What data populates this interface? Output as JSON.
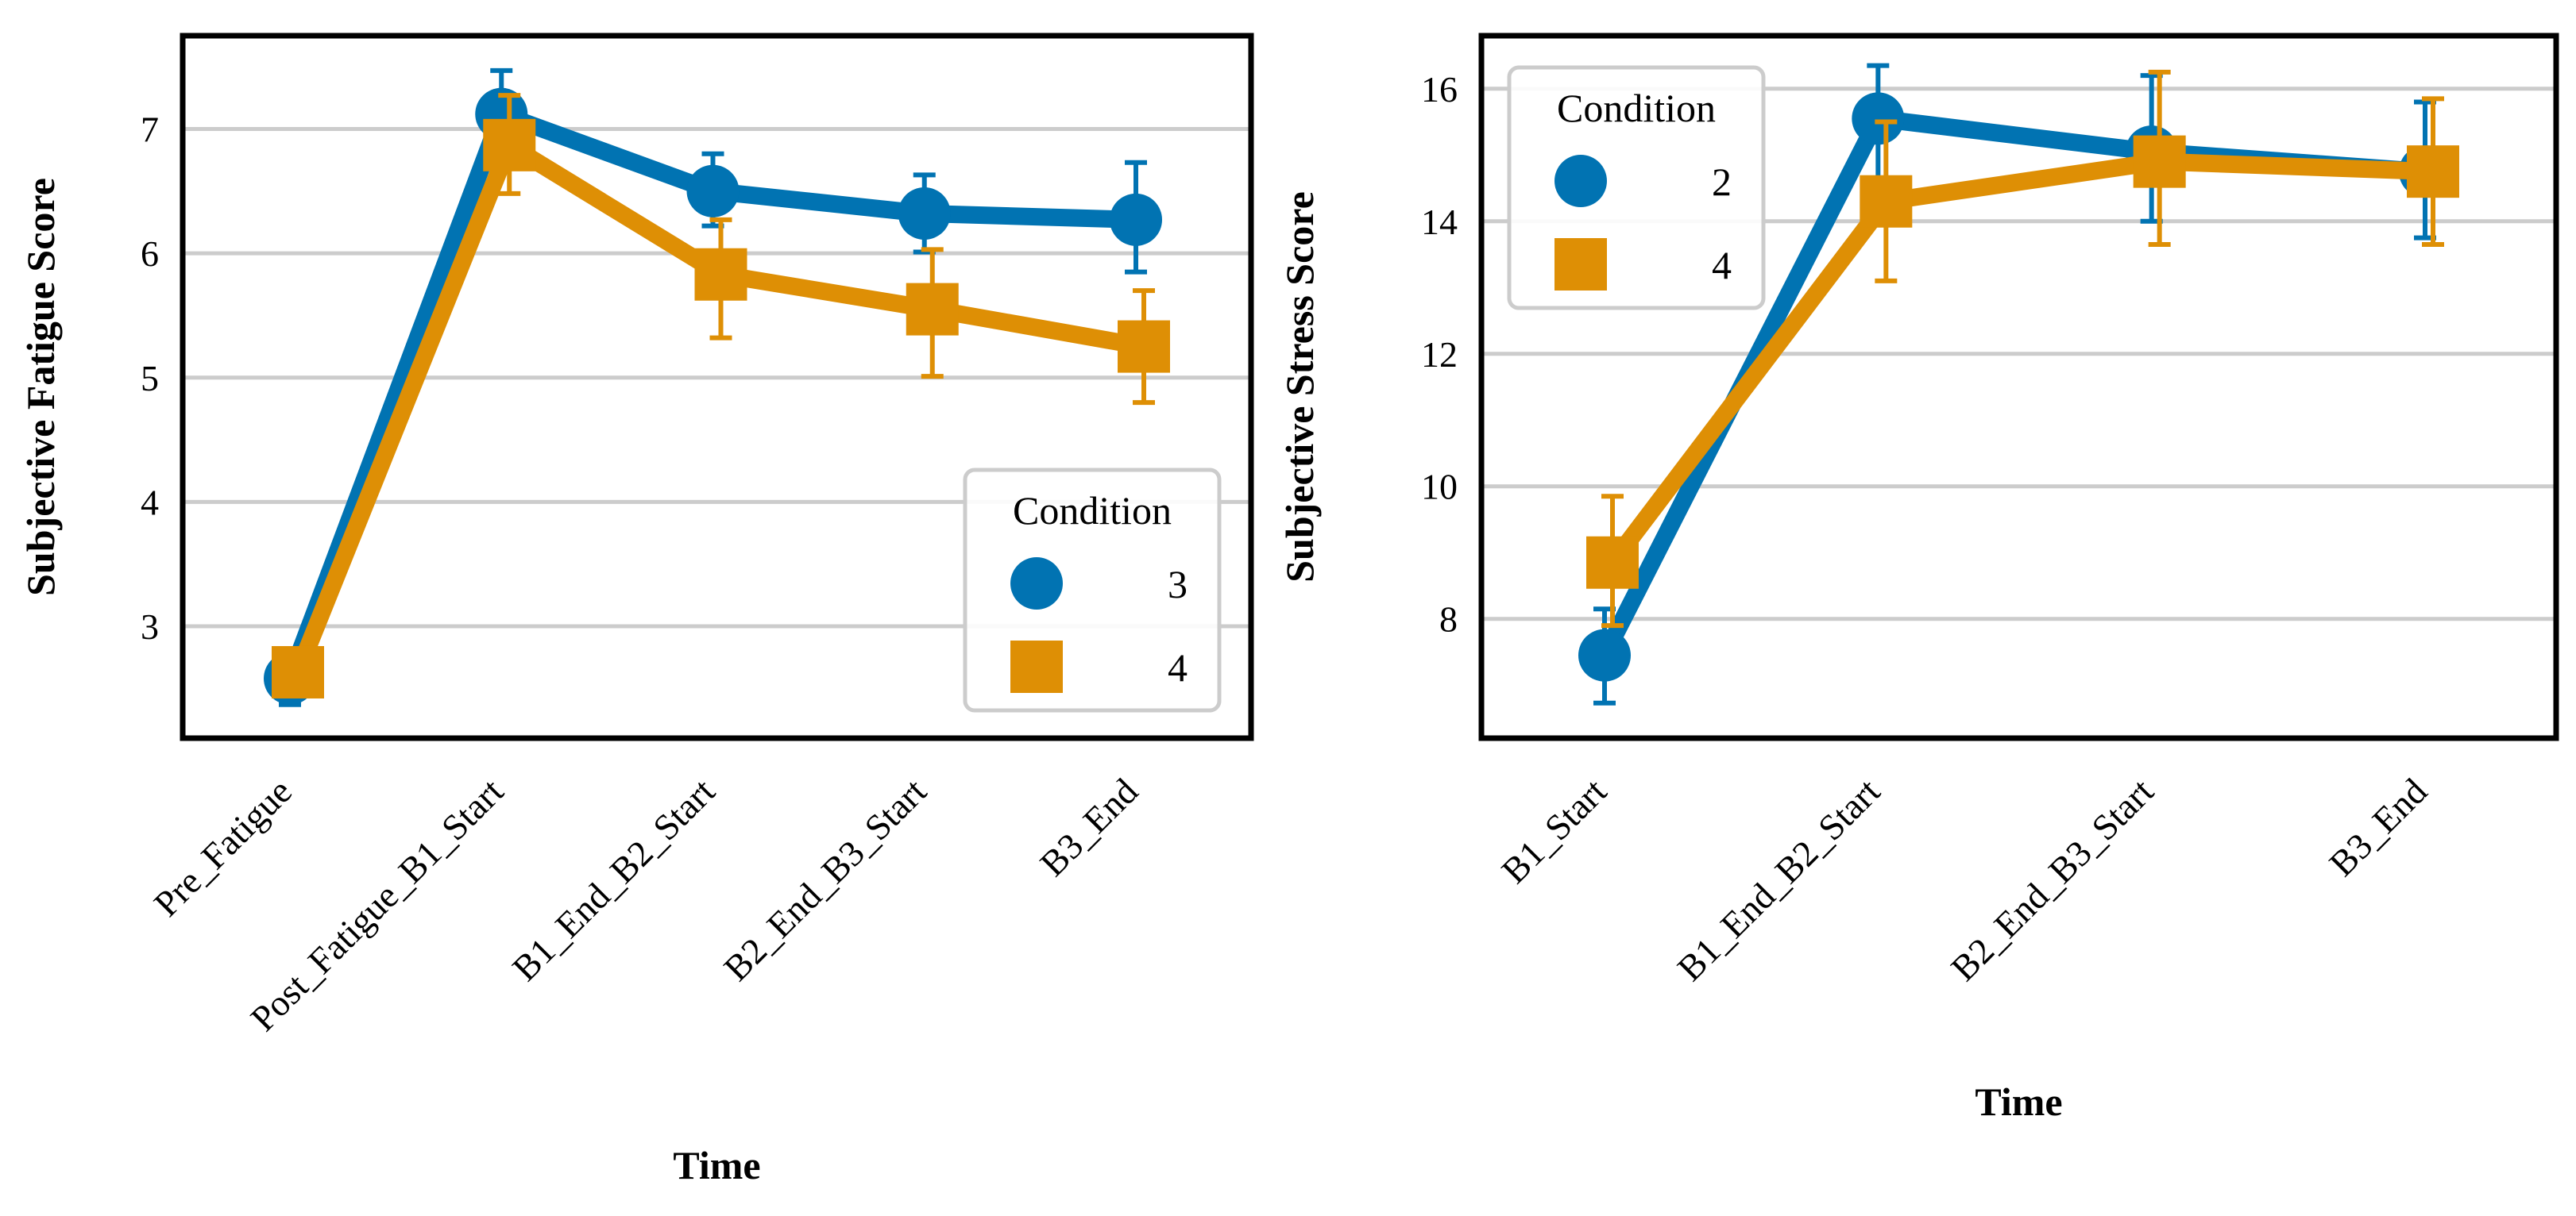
{
  "colors": {
    "series_a": "#0173b2",
    "series_b": "#de8f05",
    "grid": "#cccccc",
    "frame": "#000000"
  },
  "chart_data": [
    {
      "type": "line",
      "xlabel": "Time",
      "ylabel": "Subjective Fatigue Score",
      "categories": [
        "Pre_Fatigue",
        "Post_Fatigue_B1_Start",
        "B1_End_B2_Start",
        "B2_End_B3_Start",
        "B3_End"
      ],
      "ylim": [
        2.1,
        7.75
      ],
      "yticks": [
        3,
        4,
        5,
        6,
        7
      ],
      "grid": true,
      "legend": {
        "title": "Condition",
        "placement": "lower-right"
      },
      "series": [
        {
          "name": "3",
          "marker": "circle",
          "color": "#0173b2",
          "values": [
            2.58,
            7.12,
            6.5,
            6.32,
            6.27
          ],
          "error_low": [
            2.37,
            6.78,
            6.22,
            6.01,
            5.85
          ],
          "error_high": [
            2.75,
            7.47,
            6.8,
            6.63,
            6.73
          ]
        },
        {
          "name": "4",
          "marker": "square",
          "color": "#de8f05",
          "values": [
            2.63,
            6.87,
            5.83,
            5.55,
            5.25
          ],
          "error_low": [
            2.45,
            6.48,
            5.32,
            5.01,
            4.8
          ],
          "error_high": [
            2.8,
            7.27,
            6.27,
            6.03,
            5.7
          ]
        }
      ]
    },
    {
      "type": "line",
      "xlabel": "Time",
      "ylabel": "Subjective Stress Score",
      "categories": [
        "B1_Start",
        "B1_End_B2_Start",
        "B2_End_B3_Start",
        "B3_End"
      ],
      "ylim": [
        6.2,
        16.8
      ],
      "yticks": [
        8,
        10,
        12,
        14,
        16
      ],
      "grid": true,
      "legend": {
        "title": "Condition",
        "placement": "upper-left"
      },
      "series": [
        {
          "name": "2",
          "marker": "circle",
          "color": "#0173b2",
          "values": [
            7.45,
            15.55,
            15.05,
            14.75
          ],
          "error_low": [
            6.73,
            14.6,
            14.0,
            13.75
          ],
          "error_high": [
            8.15,
            16.35,
            16.2,
            15.8
          ]
        },
        {
          "name": "4",
          "marker": "square",
          "color": "#de8f05",
          "values": [
            8.85,
            14.3,
            14.9,
            14.75
          ],
          "error_low": [
            7.9,
            13.1,
            13.65,
            13.65
          ],
          "error_high": [
            9.85,
            15.5,
            16.25,
            15.85
          ]
        }
      ]
    }
  ]
}
